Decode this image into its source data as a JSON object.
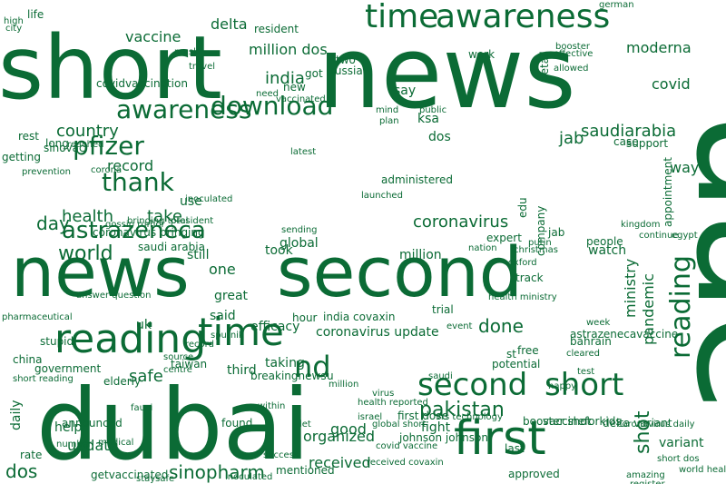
{
  "cloud": {
    "color": "#0b6b35",
    "words": [
      "short",
      "news",
      "dubai",
      "uae",
      "news",
      "second",
      "reading",
      "time",
      "awareness",
      "time",
      "download",
      "awareness",
      "pfizer",
      "thank",
      "astrazeneca",
      "world",
      "first",
      "second",
      "short",
      "shot",
      "reading",
      "day",
      "health",
      "take",
      "done",
      "pakistan",
      "dos",
      "update",
      "sinopharm",
      "india",
      "country",
      "record",
      "jab",
      "saudiarabia",
      "way",
      "coronavirus",
      "global",
      "received",
      "moderna",
      "covid",
      "million",
      "dos",
      "coronavirus update",
      "india covaxin",
      "efficacy",
      "uk",
      "said",
      "great",
      "one",
      "took",
      "still",
      "use",
      "ksa",
      "say",
      "two",
      "russia",
      "case",
      "work",
      "new",
      "got",
      "life",
      "rest",
      "sinovac",
      "long",
      "reached",
      "getting",
      "prevention",
      "mask",
      "vaccinated",
      "need",
      "free",
      "test",
      "saudi",
      "week",
      "third",
      "nd",
      "st",
      "safe",
      "taking",
      "good",
      "within",
      "found",
      "last",
      "fight",
      "trial",
      "jab",
      "people",
      "mind",
      "plan",
      "public",
      "detail",
      "getvaccinated",
      "sputnik",
      "booster shot",
      "breakingnews",
      "corona",
      "variant",
      "astrazenecavaccine",
      "pandemic",
      "medical",
      "rate",
      "daily",
      "china",
      "government",
      "announced",
      "number",
      "help",
      "stupid",
      "u",
      "taiwan",
      "delta",
      "vaccine",
      "million dos",
      "resident",
      "covidvaccination",
      "effective",
      "travel",
      "high",
      "city",
      "support",
      "fauci",
      "elderly",
      "hour",
      "let",
      "track",
      "watch",
      "administered",
      "edu",
      "expert",
      "company",
      "health ministry",
      "ministry",
      "coronavirus bringing",
      "saudi arabia",
      "short reading",
      "record",
      "source",
      "centre",
      "event",
      "potential",
      "mentioned",
      "organized",
      "approved",
      "received covaxin",
      "vaccineforkids",
      "johnson johnson",
      "covid vaccine",
      "first dose",
      "bahrain",
      "appointment",
      "global short",
      "health reported",
      "vrs technology",
      "coronavirus daily",
      "delta variant",
      "world health",
      "short dos",
      "amazing",
      "register",
      "staysafe",
      "inoculated",
      "pharmaceutical",
      "answer question",
      "gossip rumor",
      "bringing total",
      "president",
      "inoculated",
      "latest",
      "launched",
      "sending",
      "christmas",
      "oxford",
      "nation",
      "putin",
      "kingdom",
      "egypt",
      "continue",
      "israel",
      "million",
      "virus",
      "success",
      "german",
      "allowed",
      "happy",
      "cleared",
      "booster",
      "vaccine",
      "airport",
      "emergency",
      "moderna_tv",
      "fact",
      "city"
    ]
  }
}
